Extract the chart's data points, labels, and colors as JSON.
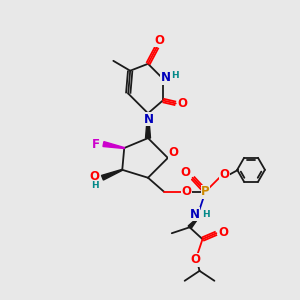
{
  "bg_color": "#e8e8e8",
  "atom_colors": {
    "O": "#ff0000",
    "N": "#0000bb",
    "F": "#cc00cc",
    "P": "#cc8800",
    "H": "#008888",
    "C": "#1a1a1a",
    "default": "#1a1a1a"
  },
  "font_size_atoms": 8.5,
  "font_size_small": 6.5,
  "line_color": "#1a1a1a",
  "line_width": 1.3,
  "bg_color_label": "#e8e8e8"
}
